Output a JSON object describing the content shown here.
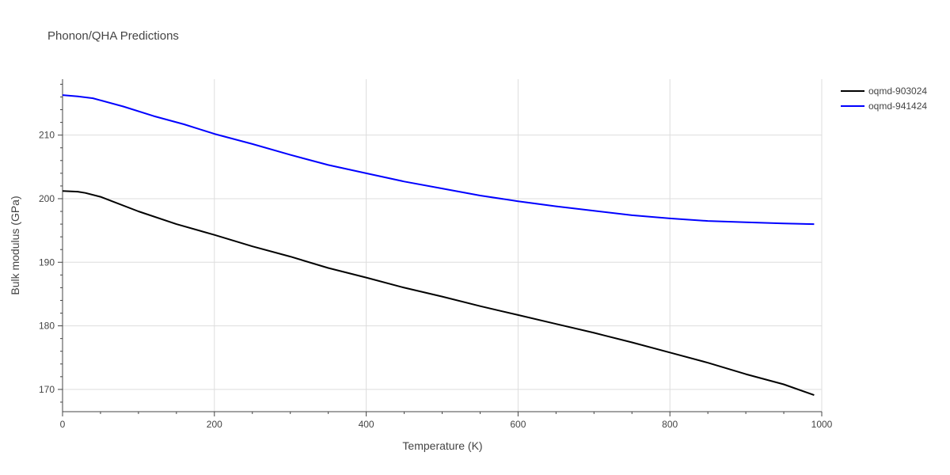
{
  "chart_data": {
    "type": "line",
    "title": "Phonon/QHA Predictions",
    "xlabel": "Temperature (K)",
    "ylabel": "Bulk modulus (GPa)",
    "xlim": [
      0,
      1000
    ],
    "ylim": [
      166.5,
      218.8
    ],
    "xticks": [
      0,
      200,
      400,
      600,
      800,
      1000
    ],
    "yticks": [
      170,
      180,
      190,
      200,
      210
    ],
    "grid": true,
    "legend_position": "top-right",
    "series": [
      {
        "name": "oqmd-903024",
        "color": "#000000",
        "x": [
          0,
          20,
          30,
          50,
          100,
          150,
          200,
          250,
          300,
          350,
          400,
          450,
          500,
          550,
          600,
          650,
          700,
          750,
          800,
          850,
          900,
          950,
          990
        ],
        "y": [
          201.2,
          201.1,
          200.9,
          200.3,
          198.0,
          196.0,
          194.3,
          192.5,
          190.9,
          189.1,
          187.6,
          186.0,
          184.6,
          183.1,
          181.7,
          180.3,
          178.9,
          177.4,
          175.8,
          174.2,
          172.4,
          170.8,
          169.1
        ]
      },
      {
        "name": "oqmd-941424",
        "color": "#0000ff",
        "x": [
          0,
          20,
          40,
          80,
          120,
          160,
          200,
          250,
          300,
          350,
          400,
          450,
          500,
          550,
          600,
          650,
          700,
          750,
          800,
          850,
          900,
          950,
          990
        ],
        "y": [
          216.3,
          216.1,
          215.8,
          214.5,
          213.0,
          211.7,
          210.2,
          208.6,
          206.9,
          205.3,
          204.0,
          202.7,
          201.6,
          200.5,
          199.6,
          198.8,
          198.1,
          197.4,
          196.9,
          196.5,
          196.3,
          196.1,
          196.0
        ]
      }
    ]
  }
}
